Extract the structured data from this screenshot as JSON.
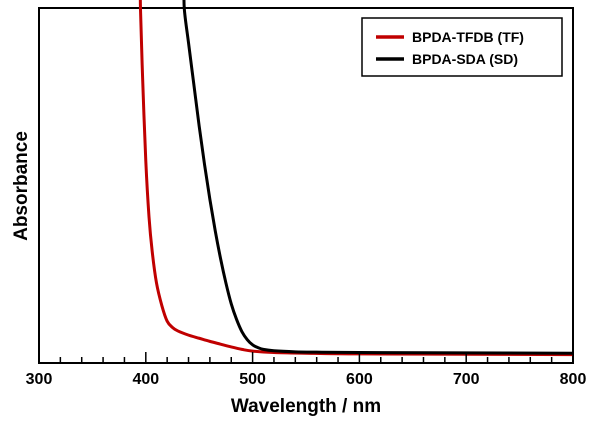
{
  "chart_data": {
    "type": "line",
    "title": "",
    "xlabel": "Wavelength / nm",
    "ylabel": "Absorbance",
    "xlim": [
      300,
      800
    ],
    "ylim": [
      0,
      1
    ],
    "x_ticks": [
      300,
      400,
      500,
      600,
      700,
      800
    ],
    "x_minor_step": 20,
    "y_ticks": [],
    "grid": false,
    "legend_position": "top-right",
    "series": [
      {
        "name": "BPDA-TFDB (TF)",
        "color": "#c00000",
        "x": [
          395,
          397,
          400,
          403,
          406,
          410,
          415,
          420,
          425,
          430,
          440,
          450,
          460,
          470,
          480,
          490,
          500,
          520,
          550,
          600,
          700,
          800
        ],
        "y": [
          1.0,
          0.8,
          0.56,
          0.4,
          0.3,
          0.21,
          0.145,
          0.1,
          0.082,
          0.072,
          0.06,
          0.051,
          0.042,
          0.034,
          0.026,
          0.019,
          0.014,
          0.01,
          0.008,
          0.006,
          0.005,
          0.004
        ]
      },
      {
        "name": "BPDA-SDA (SD)",
        "color": "#000000",
        "x": [
          436,
          440,
          445,
          450,
          455,
          460,
          465,
          470,
          475,
          480,
          485,
          490,
          495,
          500,
          505,
          510,
          520,
          540,
          560,
          600,
          700,
          800
        ],
        "y": [
          1.0,
          0.9,
          0.78,
          0.66,
          0.55,
          0.45,
          0.36,
          0.28,
          0.21,
          0.15,
          0.105,
          0.07,
          0.047,
          0.032,
          0.024,
          0.019,
          0.015,
          0.012,
          0.011,
          0.01,
          0.009,
          0.008
        ]
      }
    ]
  }
}
